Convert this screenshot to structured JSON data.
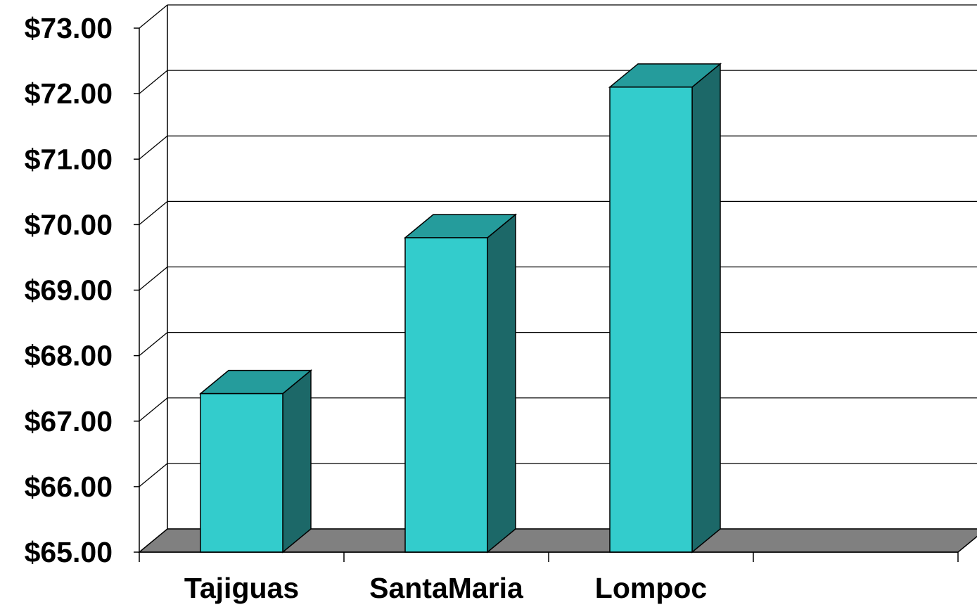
{
  "chart_data": {
    "type": "bar",
    "style": "3d-column",
    "categories": [
      "Tajiguas",
      "SantaMaria",
      "Lompoc",
      ""
    ],
    "values": [
      67.42,
      69.8,
      72.1,
      null
    ],
    "ylim": [
      65,
      73
    ],
    "yticks": [
      "$65.00",
      "$66.00",
      "$67.00",
      "$68.00",
      "$69.00",
      "$70.00",
      "$71.00",
      "$72.00",
      "$73.00"
    ],
    "grid": true,
    "legend": "none",
    "colors": {
      "bar_front": "#33CCCC",
      "bar_top": "#259C9C",
      "bar_side": "#1C6868",
      "floor": "#808080"
    }
  }
}
